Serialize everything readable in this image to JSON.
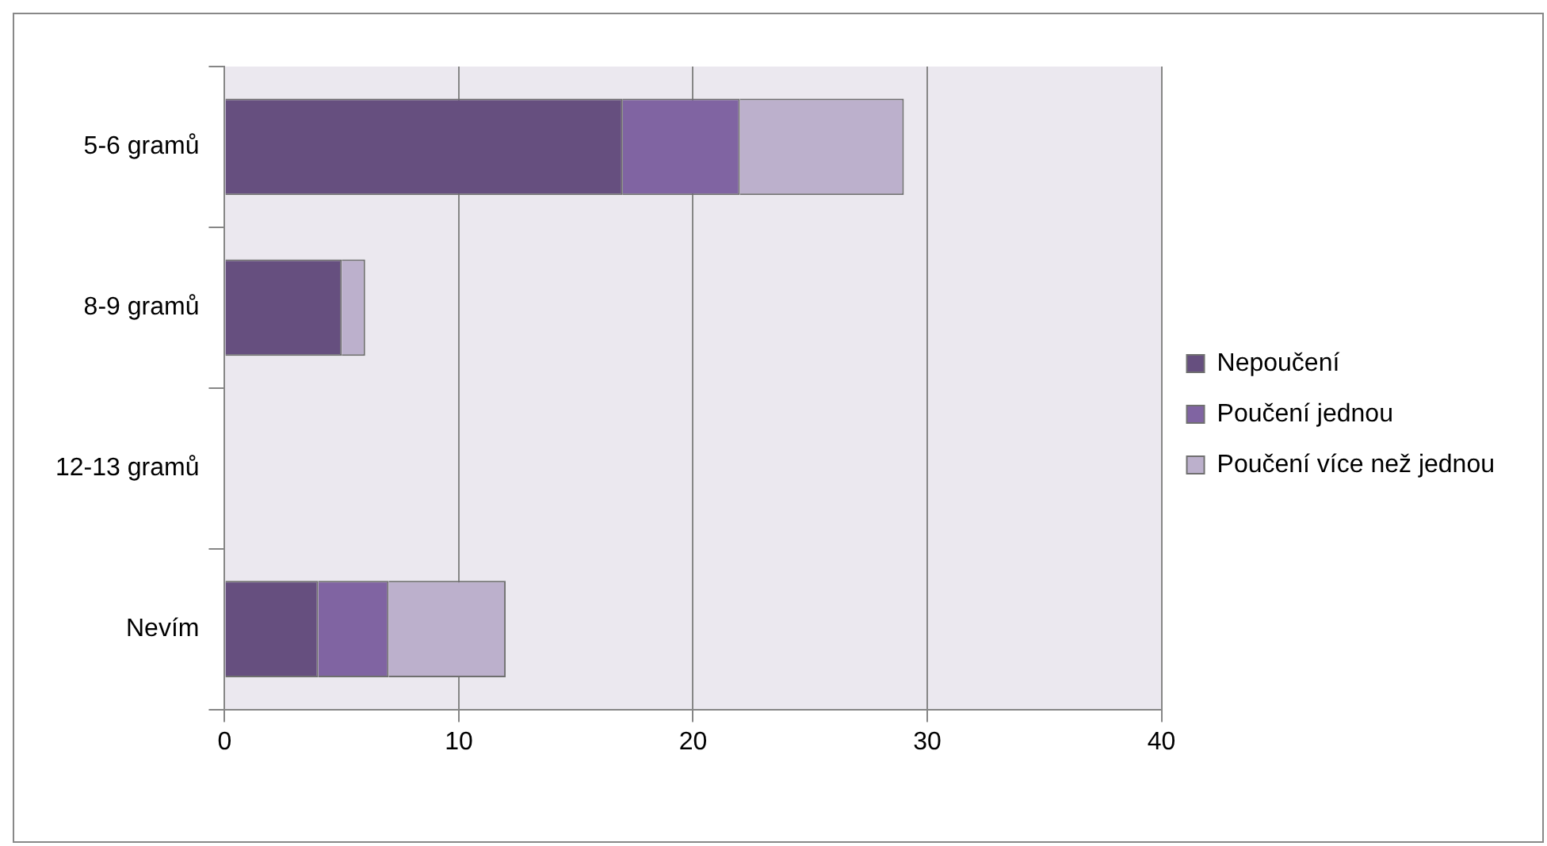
{
  "chart_data": {
    "type": "bar",
    "orientation": "horizontal",
    "stacked": true,
    "categories": [
      "5-6 gramů",
      "8-9 gramů",
      "12-13 gramů",
      "Nevím"
    ],
    "series": [
      {
        "name": "Nepoučení",
        "color": "#664f7f",
        "values": [
          17,
          5,
          0,
          4
        ]
      },
      {
        "name": "Poučení jednou",
        "color": "#8064a2",
        "values": [
          5,
          0,
          0,
          3
        ]
      },
      {
        "name": "Poučení více než jednou",
        "color": "#bcb0cc",
        "values": [
          7,
          1,
          0,
          5
        ]
      }
    ],
    "xlim": [
      0,
      40
    ],
    "xticks": [
      0,
      10,
      20,
      30,
      40
    ],
    "grid": "x",
    "legend": "right"
  }
}
